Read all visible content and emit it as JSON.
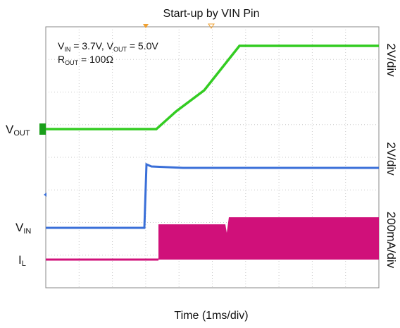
{
  "title": "Start-up by VIN Pin",
  "x_label": "Time (1ms/div)",
  "note_lines": [
    [
      "V",
      "IN",
      " = 3.7V, V",
      "OUT",
      " = 5.0V"
    ],
    [
      "R",
      "OUT",
      " = 100Ω"
    ]
  ],
  "channels": [
    {
      "main": "V",
      "sub": "OUT"
    },
    {
      "main": "V",
      "sub": "IN"
    },
    {
      "main": "I",
      "sub": "L"
    }
  ],
  "scales": [
    "2V/div",
    "2V/div",
    "200mA/div"
  ]
}
